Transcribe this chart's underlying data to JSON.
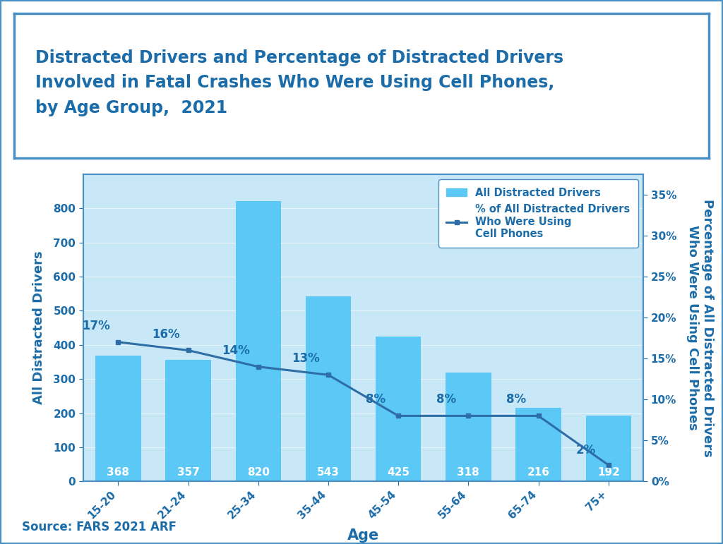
{
  "categories": [
    "15-20",
    "21-24",
    "25-34",
    "35-44",
    "45-54",
    "55-64",
    "65-74",
    "75+"
  ],
  "bar_values": [
    368,
    357,
    820,
    543,
    425,
    318,
    216,
    192
  ],
  "pct_values": [
    17,
    16,
    14,
    13,
    8,
    8,
    8,
    2
  ],
  "bar_color": "#5BC8F5",
  "line_color": "#2E6EA6",
  "title_line1": "Distracted Drivers and Percentage of Distracted Drivers",
  "title_line2": "Involved in Fatal Crashes Who Were Using Cell Phones,",
  "title_line3": "by Age Group,  2021",
  "ylabel_left": "All Distracted Drivers",
  "ylabel_right": "Percentage of All Distracted Drivers\nWho Were Using Cell Phones",
  "xlabel": "Age",
  "ylim_left": [
    0,
    900
  ],
  "ylim_right": [
    0,
    37.5
  ],
  "yticks_left": [
    0,
    100,
    200,
    300,
    400,
    500,
    600,
    700,
    800
  ],
  "yticks_right": [
    0,
    5,
    10,
    15,
    20,
    25,
    30,
    35
  ],
  "source_text": "Source: FARS 2021 ARF",
  "title_color": "#1B6CA8",
  "axis_color": "#1B6CA8",
  "source_color": "#1B6CA8",
  "background_color": "#C8E8F8",
  "outer_bg": "#FFFFFF",
  "bar_label_color": "#FFFFFF",
  "pct_label_color": "#1B6CA8",
  "legend_bar_label": "All Distracted Drivers",
  "legend_line_label": "% of All Distracted Drivers\nWho Were Using\nCell Phones",
  "border_color": "#4A90C4",
  "title_fontsize": 17,
  "axis_label_fontsize": 13,
  "tick_fontsize": 11,
  "bar_label_fontsize": 11,
  "pct_label_fontsize": 12,
  "source_fontsize": 12
}
